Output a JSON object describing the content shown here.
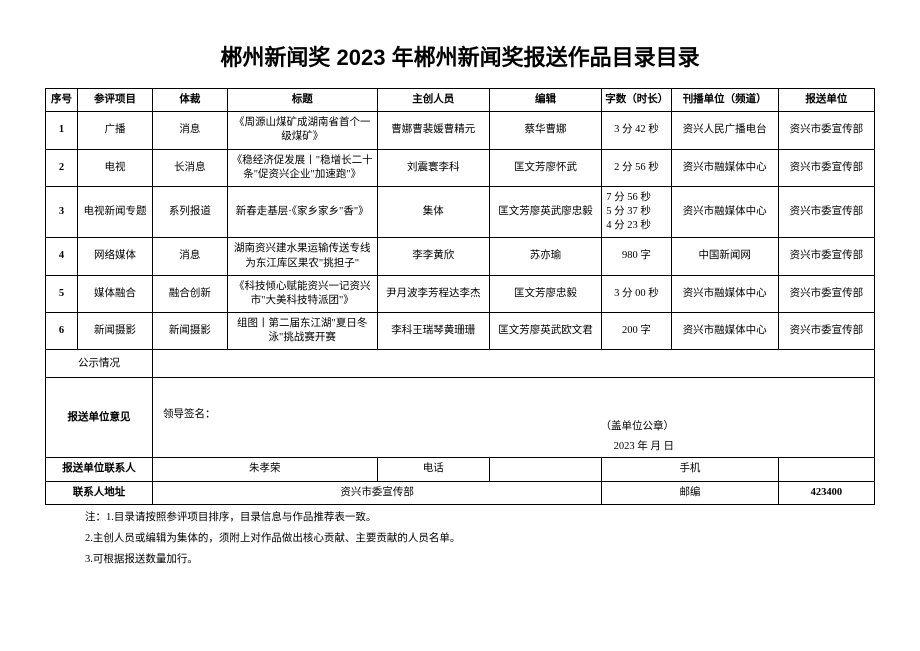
{
  "title": "郴州新闻奖 2023 年郴州新闻奖报送作品目录目录",
  "headers": {
    "seq": "序号",
    "category": "参评项目",
    "genre": "体裁",
    "worktitle": "标题",
    "creator": "主创人员",
    "editor": "编辑",
    "length": "字数（时长）",
    "publisher": "刊播单位（频道）",
    "submitter": "报送单位"
  },
  "rows": [
    {
      "seq": "1",
      "category": "广播",
      "genre": "消息",
      "worktitle": "《周源山煤矿成湖南省首个一级煤矿》",
      "creator": "曹娜曹裴媛曹精元",
      "editor": "蔡华曹娜",
      "length": "3 分 42 秒",
      "publisher": "资兴人民广播电台",
      "submitter": "资兴市委宣传部"
    },
    {
      "seq": "2",
      "category": "电视",
      "genre": "长消息",
      "worktitle": "《稳经济促发展丨\"稳增长二十条\"促资兴企业\"加速跑\"》",
      "creator": "刘震寰李科",
      "editor": "匡文芳廖怀武",
      "length": "2 分 56 秒",
      "publisher": "资兴市融媒体中心",
      "submitter": "资兴市委宣传部"
    },
    {
      "seq": "3",
      "category": "电视新闻专题",
      "genre": "系列报道",
      "worktitle": "新春走基层·《家乡家乡\"香\"》",
      "creator": "集体",
      "editor": "匡文芳廖英武廖忠毅",
      "length": "7 分 56 秒\n5 分 37 秒\n4 分 23 秒",
      "publisher": "资兴市融媒体中心",
      "submitter": "资兴市委宣传部"
    },
    {
      "seq": "4",
      "category": "网络媒体",
      "genre": "消息",
      "worktitle": "湖南资兴建水果运输传送专线为东江库区果农\"挑担子\"",
      "creator": "李李黄欣",
      "editor": "苏亦瑜",
      "length": "980 字",
      "publisher": "中国新闻网",
      "submitter": "资兴市委宣传部"
    },
    {
      "seq": "5",
      "category": "媒体融合",
      "genre": "融合创新",
      "worktitle": "《科技倾心赋能资兴一记资兴市\"大美科技特派团\"》",
      "creator": "尹月波李芳程达李杰",
      "editor": "匡文芳廖忠毅",
      "length": "3 分 00 秒",
      "publisher": "资兴市融媒体中心",
      "submitter": "资兴市委宣传部"
    },
    {
      "seq": "6",
      "category": "新闻摄影",
      "genre": "新闻摄影",
      "worktitle": "组图丨第二届东江湖\"夏日冬泳\"挑战赛开赛",
      "creator": "李科王瑞琴黄珊珊",
      "editor": "匡文芳廖英武欧文君",
      "length": "200 字",
      "publisher": "资兴市融媒体中心",
      "submitter": "资兴市委宣传部"
    }
  ],
  "publicity_label": "公示情况",
  "opinion_label": "报送单位意见",
  "leader_sign": "领导签名：",
  "stamp": "（盖单位公章）",
  "date": "2023 年 月 日",
  "contact_person_label": "报送单位联系人",
  "contact_person": "朱孝荣",
  "phone_label": "电话",
  "mobile_label": "手机",
  "address_label": "联系人地址",
  "address": "资兴市委宣传部",
  "postcode_label": "邮编",
  "postcode": "423400",
  "notes": {
    "prefix": "注：",
    "n1": "1.目录请按照参评项目排序，目录信息与作品推荐表一致。",
    "n2": "2.主创人员或编辑为集体的，须附上对作品做出核心贡献、主要贡献的人员名单。",
    "n3": "3.可根据报送数量加行。"
  }
}
